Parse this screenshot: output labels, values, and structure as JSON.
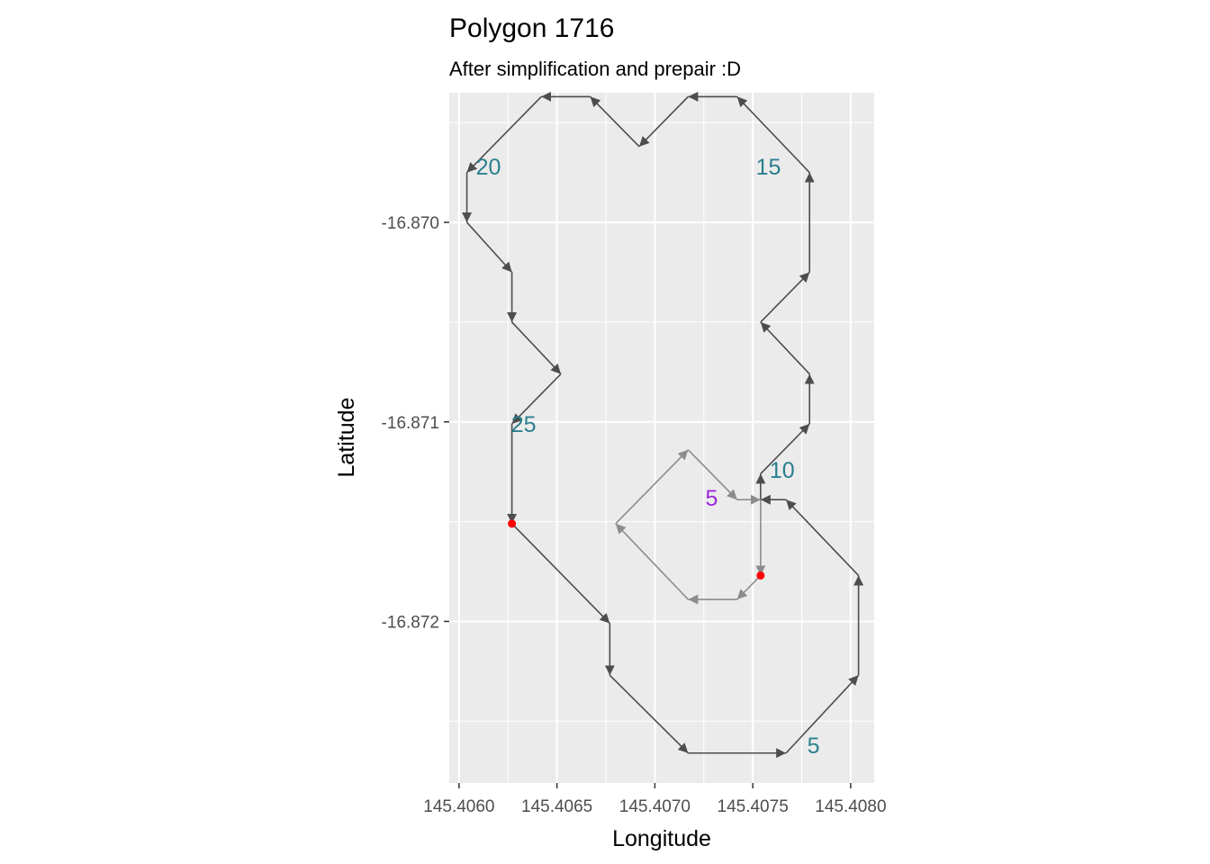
{
  "chart_data": {
    "type": "path",
    "title": "Polygon 1716",
    "subtitle": "After simplification and prepair :D",
    "xlabel": "Longitude",
    "ylabel": "Latitude",
    "xlim": [
      145.40595,
      145.40812
    ],
    "ylim": [
      -16.87281,
      -16.86935
    ],
    "grid": true,
    "legend": "none",
    "x_ticks": [
      145.406,
      145.4065,
      145.407,
      145.4075,
      145.408
    ],
    "x_tick_labels": [
      "145.4060",
      "145.4065",
      "145.4070",
      "145.4075",
      "145.4080"
    ],
    "y_ticks": [
      -16.87,
      -16.871,
      -16.872
    ],
    "y_tick_labels": [
      "-16.870",
      "-16.871",
      "-16.872"
    ],
    "colors": {
      "panel": "#ebebeb",
      "grid": "#ffffff",
      "outer_ring": "#4d4d4d",
      "inner_ring": "#8c8c8c",
      "start_point": "#ff0000",
      "outer_label": "#2b7f8e",
      "inner_label": "#9b27d9"
    },
    "series": [
      {
        "ring": "outer",
        "points": [
          [
            145.40627,
            -16.87151
          ],
          [
            145.40677,
            -16.87201
          ],
          [
            145.40677,
            -16.87227
          ],
          [
            145.40717,
            -16.87266
          ],
          [
            145.40767,
            -16.87266
          ],
          [
            145.40804,
            -16.87227
          ],
          [
            145.40804,
            -16.87177
          ],
          [
            145.40767,
            -16.87139
          ],
          [
            145.40754,
            -16.87139
          ],
          [
            145.40754,
            -16.87126
          ],
          [
            145.40779,
            -16.87101
          ],
          [
            145.40779,
            -16.87076
          ],
          [
            145.40754,
            -16.8705
          ],
          [
            145.40779,
            -16.87025
          ],
          [
            145.40779,
            -16.86975
          ],
          [
            145.40742,
            -16.86937
          ],
          [
            145.40717,
            -16.86937
          ],
          [
            145.40692,
            -16.86962
          ],
          [
            145.40667,
            -16.86937
          ],
          [
            145.40642,
            -16.86937
          ],
          [
            145.40604,
            -16.86975
          ],
          [
            145.40604,
            -16.87
          ],
          [
            145.40627,
            -16.87025
          ],
          [
            145.40627,
            -16.8705
          ],
          [
            145.40652,
            -16.87076
          ],
          [
            145.40627,
            -16.87101
          ],
          [
            145.40627,
            -16.87151
          ]
        ],
        "labels": [
          {
            "text": "5",
            "x": 145.40781,
            "y": -16.87262
          },
          {
            "text": "10",
            "x": 145.40765,
            "y": -16.87124
          },
          {
            "text": "15",
            "x": 145.40758,
            "y": -16.86972
          },
          {
            "text": "20",
            "x": 145.40615,
            "y": -16.86972
          },
          {
            "text": "25",
            "x": 145.40633,
            "y": -16.87101
          }
        ]
      },
      {
        "ring": "inner",
        "points": [
          [
            145.40754,
            -16.87177
          ],
          [
            145.40742,
            -16.87189
          ],
          [
            145.40717,
            -16.87189
          ],
          [
            145.4068,
            -16.87151
          ],
          [
            145.40717,
            -16.87114
          ],
          [
            145.40742,
            -16.87139
          ],
          [
            145.40754,
            -16.87139
          ],
          [
            145.40754,
            -16.87177
          ]
        ],
        "labels": [
          {
            "text": "5",
            "x": 145.40729,
            "y": -16.87138
          }
        ]
      }
    ],
    "start_points": [
      [
        145.40627,
        -16.87151
      ],
      [
        145.40754,
        -16.87177
      ]
    ]
  }
}
